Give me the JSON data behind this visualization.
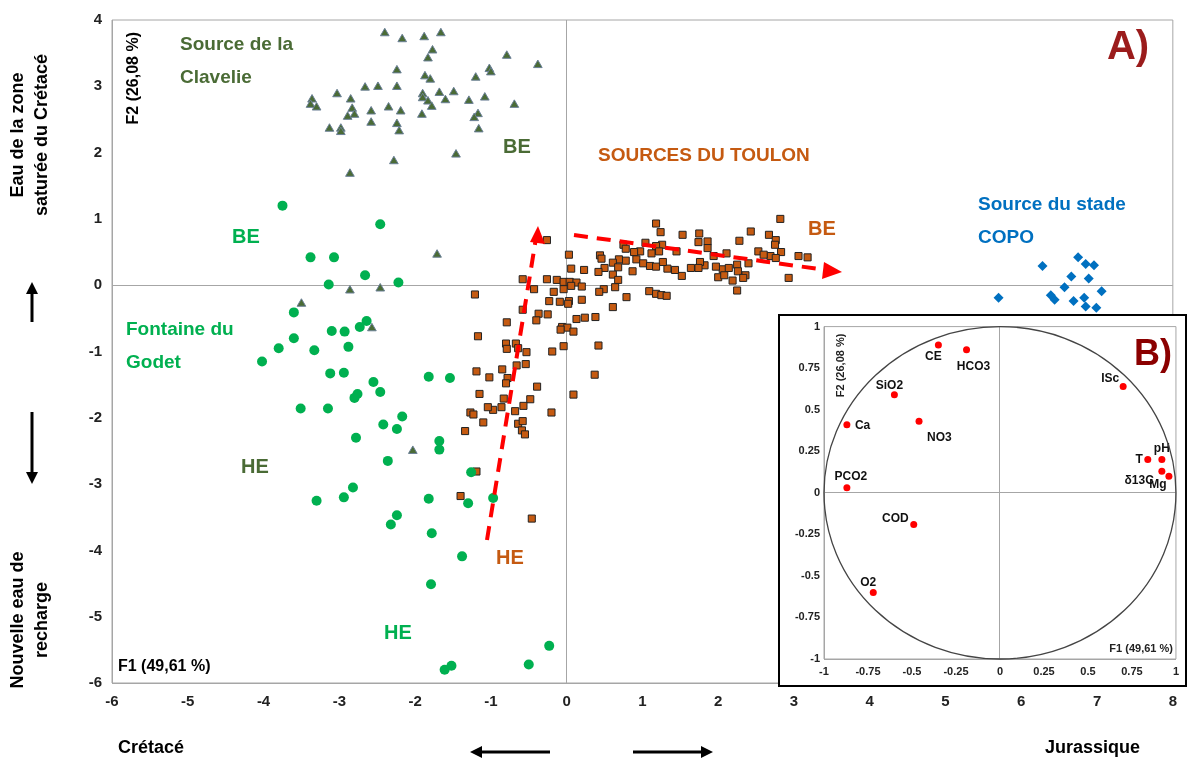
{
  "chart_data": [
    {
      "type": "scatter",
      "xlabel": "F1 (49,61 %)",
      "ylabel": "F2 (26,08 %)",
      "xlim": [
        -6,
        8
      ],
      "xticks": [
        -6,
        -5,
        -4,
        -3,
        -2,
        -1,
        0,
        1,
        2,
        3,
        4,
        5,
        6,
        7,
        8
      ],
      "ylim": [
        -6,
        4
      ],
      "yticks": [
        -6,
        -5,
        -4,
        -3,
        -2,
        -1,
        0,
        1,
        2,
        3,
        4
      ],
      "legend": false,
      "series": [
        {
          "name": "Source de la Clavelie",
          "color": "#4a6b35",
          "marker": "triangle",
          "x": [
            -2.4,
            -2.17,
            -1.88,
            -1.66,
            -1.77,
            -1.83,
            -0.79,
            -0.38,
            -2.24,
            -1.87,
            -1.8,
            -1.2,
            -1.02,
            -1.0,
            -2.66,
            -2.49,
            -2.24,
            -3.03,
            -2.85,
            -3.36,
            -3.38,
            -3.3,
            -2.83,
            -2.8,
            -2.89,
            -2.58,
            -2.35,
            -2.19,
            -1.9,
            -1.9,
            -1.83,
            -1.78,
            -1.68,
            -1.6,
            -1.49,
            -1.91,
            -1.29,
            -1.08,
            -0.69,
            -1.17,
            -1.22,
            -1.16,
            -3.13,
            -2.98,
            -2.98,
            -2.58,
            -2.24,
            -2.21,
            -1.46,
            -2.28,
            -2.86,
            -1.71,
            -2.86,
            -2.46,
            -3.5,
            -2.57,
            -2.03
          ],
          "values": [
            3.8,
            3.71,
            3.74,
            3.8,
            3.54,
            3.42,
            3.46,
            3.32,
            3.24,
            3.15,
            3.1,
            3.13,
            3.26,
            3.21,
            2.98,
            2.99,
            2.99,
            2.88,
            2.8,
            2.8,
            2.72,
            2.68,
            2.66,
            2.57,
            2.54,
            2.62,
            2.68,
            2.62,
            2.88,
            2.82,
            2.77,
            2.69,
            2.9,
            2.79,
            2.91,
            2.57,
            2.78,
            2.83,
            2.72,
            2.58,
            2.52,
            2.35,
            2.36,
            2.36,
            2.31,
            2.45,
            2.43,
            2.32,
            1.97,
            1.87,
            1.68,
            0.46,
            -0.08,
            -0.05,
            -0.28,
            -0.65,
            -2.5
          ]
        },
        {
          "name": "Fontaine du Godet",
          "color": "#00b050",
          "marker": "circle",
          "x": [
            -3.75,
            -2.46,
            -3.38,
            -3.07,
            -2.66,
            -3.14,
            -2.22,
            -3.6,
            -2.64,
            -2.73,
            -3.1,
            -2.93,
            -3.6,
            -3.8,
            -3.33,
            -2.88,
            -4.02,
            -3.12,
            -2.94,
            -1.82,
            -1.54,
            -2.55,
            -2.46,
            -2.76,
            -2.8,
            -3.51,
            -3.15,
            -2.17,
            -2.42,
            -2.24,
            -2.78,
            -1.68,
            -1.68,
            -2.36,
            -1.26,
            -2.82,
            -2.94,
            -3.3,
            -1.82,
            -1.3,
            -0.97,
            -2.24,
            -2.32,
            -1.78,
            -1.38,
            -1.79,
            -0.23,
            -0.5,
            -1.52,
            -1.61
          ],
          "values": [
            1.2,
            0.92,
            0.42,
            0.42,
            0.15,
            0.01,
            0.04,
            -0.41,
            -0.54,
            -0.63,
            -0.69,
            -0.7,
            -0.8,
            -0.95,
            -0.98,
            -0.93,
            -1.15,
            -1.33,
            -1.32,
            -1.38,
            -1.4,
            -1.46,
            -1.61,
            -1.64,
            -1.7,
            -1.86,
            -1.86,
            -1.98,
            -2.1,
            -2.17,
            -2.3,
            -2.35,
            -2.48,
            -2.65,
            -2.82,
            -3.05,
            -3.2,
            -3.25,
            -3.22,
            -3.29,
            -3.21,
            -3.47,
            -3.61,
            -3.74,
            -4.09,
            -4.51,
            -5.44,
            -5.72,
            -5.74,
            -5.8
          ]
        },
        {
          "name": "SOURCES DU TOULON",
          "color": "#c55a11",
          "marker": "square",
          "x": [
            2.82,
            1.18,
            1.24,
            1.53,
            1.75,
            1.74,
            1.86,
            1.86,
            2.43,
            2.28,
            2.67,
            2.76,
            2.75,
            2.83,
            2.69,
            2.76,
            3.06,
            3.18,
            2.93,
            2.53,
            2.6,
            2.4,
            2.25,
            2.26,
            2.36,
            2.33,
            2.19,
            2.25,
            2.11,
            2.06,
            2.0,
            2.08,
            2.14,
            1.97,
            1.94,
            1.82,
            1.76,
            1.74,
            1.64,
            1.52,
            1.43,
            1.33,
            1.45,
            1.27,
            1.26,
            1.18,
            1.22,
            1.12,
            1.04,
            0.97,
            0.89,
            0.75,
            0.78,
            0.92,
            1.01,
            1.1,
            1.18,
            0.78,
            0.69,
            0.61,
            0.68,
            0.87,
            0.44,
            0.46,
            0.5,
            0.42,
            0.61,
            0.68,
            0.64,
            0.49,
            0.43,
            0.79,
            0.61,
            1.09,
            1.18,
            1.25,
            1.32,
            0.03,
            0.06,
            0.23,
            -0.26,
            -0.58,
            -0.26,
            -0.13,
            -0.04,
            0.04,
            0.13,
            0.06,
            0.2,
            -0.04,
            -0.43,
            -1.21,
            -0.17,
            -0.23,
            -0.09,
            0.03,
            0.02,
            0.2,
            -0.58,
            -0.37,
            -0.25,
            -0.4,
            -0.79,
            0.13,
            0.24,
            0.38,
            -0.06,
            0.01,
            -0.08,
            0.09,
            -1.17,
            -0.8,
            -0.67,
            -0.79,
            -0.64,
            -0.53,
            -0.19,
            -0.04,
            0.42,
            -0.54,
            -0.66,
            -0.85,
            -1.19,
            -1.02,
            -0.78,
            -0.8,
            -0.39,
            0.37,
            -1.15,
            0.09,
            -0.48,
            -0.83,
            -0.57,
            -0.86,
            -0.97,
            -1.04,
            -1.27,
            -1.23,
            -0.68,
            -0.2,
            -1.1,
            -0.64,
            -0.58,
            -0.59,
            -0.55,
            -1.34,
            -1.19,
            -1.4,
            -0.46
          ],
          "values": [
            1.0,
            0.93,
            0.8,
            0.76,
            0.78,
            0.65,
            0.66,
            0.56,
            0.81,
            0.67,
            0.76,
            0.68,
            0.61,
            0.5,
            0.44,
            0.41,
            0.44,
            0.42,
            0.11,
            0.51,
            0.46,
            0.33,
            0.31,
            0.21,
            0.15,
            0.11,
            0.07,
            -0.08,
            0.48,
            0.24,
            0.12,
            0.15,
            0.26,
            0.28,
            0.44,
            0.3,
            0.35,
            0.26,
            0.26,
            0.14,
            0.23,
            0.25,
            0.51,
            0.35,
            0.61,
            0.59,
            0.51,
            0.48,
            0.64,
            0.51,
            0.5,
            0.61,
            0.55,
            0.39,
            0.33,
            0.29,
            0.28,
            0.37,
            0.39,
            0.34,
            0.27,
            0.21,
            0.45,
            0.4,
            0.26,
            0.2,
            0.16,
            0.08,
            -0.03,
            -0.06,
            -0.1,
            -0.18,
            -0.33,
            -0.09,
            -0.13,
            -0.15,
            -0.16,
            0.46,
            0.25,
            0.23,
            0.68,
            0.09,
            0.09,
            0.08,
            0.05,
            0.05,
            0.04,
            -0.01,
            -0.02,
            -0.06,
            -0.06,
            -0.14,
            -0.1,
            -0.24,
            -0.25,
            -0.24,
            -0.28,
            -0.22,
            -0.37,
            -0.43,
            -0.44,
            -0.53,
            -0.56,
            -0.51,
            -0.49,
            -0.48,
            -0.63,
            -0.64,
            -0.67,
            -0.7,
            -0.77,
            -0.88,
            -0.88,
            -0.96,
            -0.95,
            -1.01,
            -1.0,
            -0.92,
            -0.91,
            -1.19,
            -1.21,
            -1.27,
            -1.3,
            -1.39,
            -1.4,
            -1.48,
            -1.53,
            -1.35,
            -1.64,
            -1.65,
            -1.72,
            -1.71,
            -1.82,
            -1.84,
            -1.88,
            -1.84,
            -1.92,
            -1.95,
            -1.9,
            -1.92,
            -2.07,
            -2.09,
            -2.05,
            -2.19,
            -2.25,
            -2.2,
            -2.81,
            -3.18,
            -3.52
          ]
        },
        {
          "name": "Source du stade COPO",
          "color": "#0070c0",
          "marker": "diamond",
          "x": [
            6.75,
            6.28,
            6.85,
            6.96,
            6.66,
            6.89,
            6.57,
            7.06,
            6.39,
            6.44,
            6.69,
            6.83,
            6.85,
            6.99,
            5.7
          ],
          "values": [
            0.42,
            0.29,
            0.32,
            0.3,
            0.13,
            0.1,
            -0.03,
            -0.09,
            -0.15,
            -0.22,
            -0.24,
            -0.19,
            -0.32,
            -0.34,
            -0.19
          ]
        }
      ],
      "annotations": [
        "A)",
        "Eau de la zone saturée du Crétacé",
        "Nouvelle eau de recharge",
        "Crétacé",
        "Jurassique",
        "BE",
        "BE",
        "HE",
        "HE",
        "HE",
        "BE"
      ]
    },
    {
      "type": "scatter",
      "xlabel": "F1 (49,61 %)",
      "ylabel": "F2 (26,08 %)",
      "xlim": [
        -1,
        1
      ],
      "xticks": [
        -1,
        -0.75,
        -0.5,
        -0.25,
        0,
        0.25,
        0.5,
        0.75,
        1
      ],
      "ylim": [
        -1,
        1
      ],
      "yticks": [
        -1,
        -0.75,
        -0.5,
        -0.25,
        0,
        0.25,
        0.5,
        0.75,
        1
      ],
      "legend": false,
      "marker": "circle",
      "series": [
        {
          "color": "#ff0000",
          "x": [
            -0.35,
            -0.19,
            0.7,
            -0.6,
            -0.87,
            -0.46,
            0.84,
            0.92,
            0.92,
            0.96,
            -0.87,
            -0.49,
            -0.72
          ],
          "values": [
            0.89,
            0.86,
            0.64,
            0.59,
            0.41,
            0.43,
            0.2,
            0.2,
            0.13,
            0.1,
            0.03,
            -0.19,
            -0.6
          ]
        }
      ],
      "annotations": [
        "B)",
        {
          "text": "CE",
          "x": -0.35,
          "y": 0.89
        },
        {
          "text": "HCO3",
          "x": -0.19,
          "y": 0.86
        },
        {
          "text": "ISc",
          "x": 0.7,
          "y": 0.64
        },
        {
          "text": "SiO2",
          "x": -0.6,
          "y": 0.59
        },
        {
          "text": "Ca",
          "x": -0.87,
          "y": 0.41
        },
        {
          "text": "NO3",
          "x": -0.46,
          "y": 0.43
        },
        {
          "text": "T",
          "x": 0.84,
          "y": 0.2
        },
        {
          "text": "pH",
          "x": 0.92,
          "y": 0.2
        },
        {
          "text": "δ13C",
          "x": 0.92,
          "y": 0.13
        },
        {
          "text": "Mg",
          "x": 0.96,
          "y": 0.1
        },
        {
          "text": "PCO2",
          "x": -0.87,
          "y": 0.03
        },
        {
          "text": "COD",
          "x": -0.49,
          "y": -0.19
        },
        {
          "text": "O2",
          "x": -0.72,
          "y": -0.6
        }
      ]
    }
  ]
}
